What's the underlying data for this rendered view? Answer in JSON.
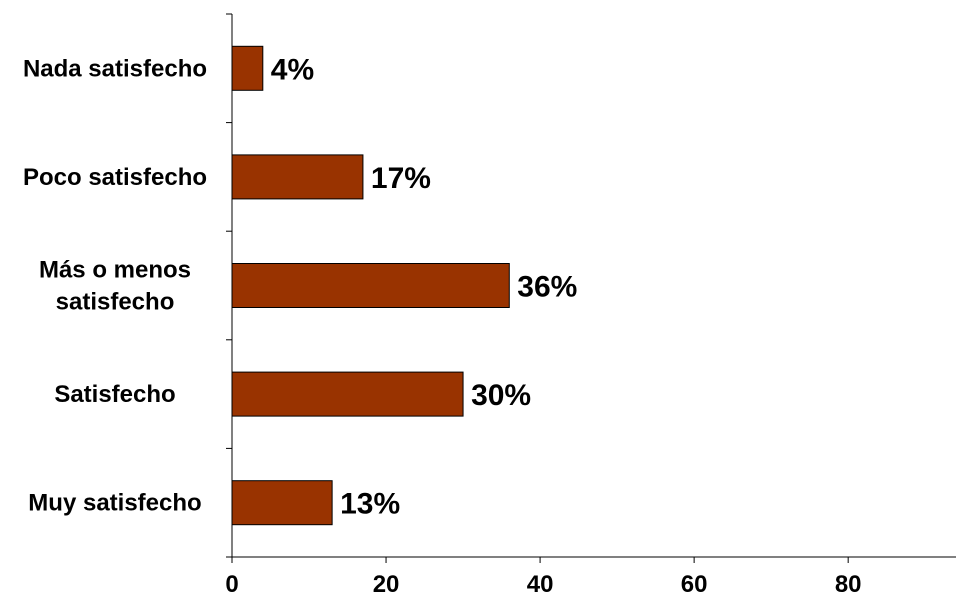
{
  "chart_data": {
    "type": "bar",
    "orientation": "horizontal",
    "categories": [
      "Nada satisfecho",
      "Poco satisfecho",
      "Más o menos satisfecho",
      "Satisfecho",
      "Muy satisfecho"
    ],
    "category_lines": [
      [
        "Nada satisfecho"
      ],
      [
        "Poco satisfecho"
      ],
      [
        "Más o menos",
        "satisfecho"
      ],
      [
        "Satisfecho"
      ],
      [
        "Muy satisfecho"
      ]
    ],
    "values": [
      4,
      17,
      36,
      30,
      13
    ],
    "value_labels": [
      "4%",
      "17%",
      "36%",
      "30%",
      "13%"
    ],
    "xlim": [
      0,
      94
    ],
    "xticks": [
      0,
      20,
      40,
      60,
      80
    ],
    "title": "",
    "xlabel": "",
    "ylabel": "",
    "grid": false,
    "legend": "none",
    "colors": {
      "bar_fill": "#993300",
      "bar_stroke": "#000000",
      "axis": "#000000",
      "text": "#000000"
    }
  }
}
